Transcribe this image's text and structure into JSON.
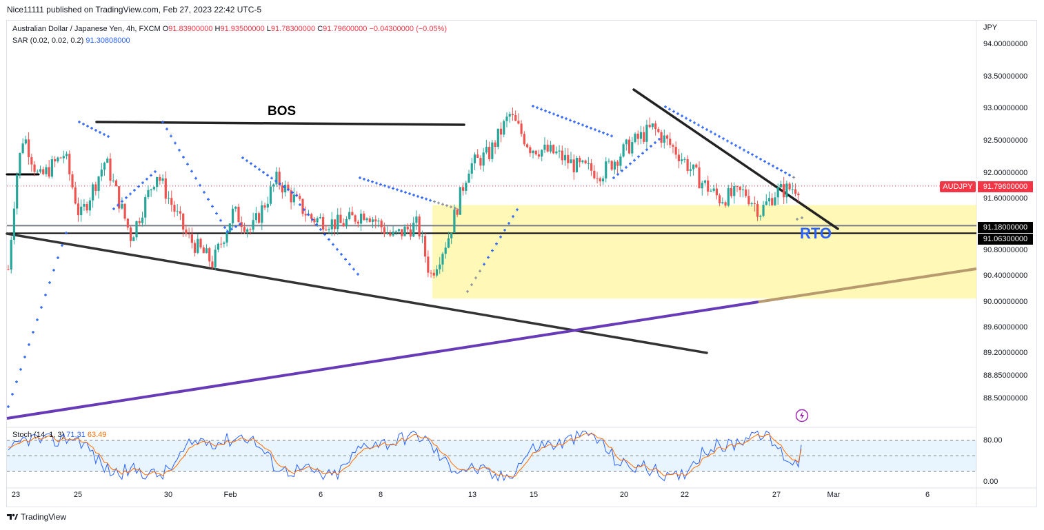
{
  "header": {
    "published": "Nice11111 published on TradingView.com, Feb 27, 2023 22:42 UTC-5"
  },
  "legend": {
    "symbol": "Australian Dollar / Japanese Yen, 4h, FXCM",
    "open_label": "O",
    "open": "91.83900000",
    "high_label": "H",
    "high": "91.93500000",
    "low_label": "L",
    "low": "91.78300000",
    "close_label": "C",
    "close": "91.79600000",
    "change": "−0.04300000 (−0.05%)",
    "sar_label": "SAR (0.02, 0.02, 0.2)",
    "sar_value": "91.30808000",
    "stoch_label": "Stoch (14, 1, 3)",
    "stoch_k": "71.31",
    "stoch_d": "63.49"
  },
  "price_axis": {
    "currency": "JPY",
    "ticks": [
      "94.00000000",
      "93.50000000",
      "93.00000000",
      "92.50000000",
      "92.00000000",
      "91.60000000",
      "90.80000000",
      "90.40000000",
      "90.00000000",
      "89.60000000",
      "89.20000000",
      "88.85000000",
      "88.50000000"
    ],
    "highlight_labels": [
      {
        "text": "91.79600000",
        "color": "#f23645"
      },
      {
        "text": "91.18000000",
        "color": "#000000"
      },
      {
        "text": "91.06300000",
        "color": "#000000"
      }
    ],
    "symbol_tag": "AUDJPY"
  },
  "stoch_axis": {
    "ticks": [
      "80.00",
      "0.00"
    ]
  },
  "time_axis": {
    "ticks": [
      "23",
      "25",
      "30",
      "Feb",
      "6",
      "8",
      "13",
      "15",
      "20",
      "22",
      "27",
      "Mar",
      "6"
    ]
  },
  "annotations": {
    "bos": "BOS",
    "rto": "RTO"
  },
  "footer": {
    "brand": "TradingView"
  },
  "colors": {
    "up": "#26a69a",
    "down": "#ef5350",
    "sar": "#2962ff",
    "zone": "#fff59d",
    "trend": "#673ab7"
  },
  "chart_data": {
    "type": "candlestick",
    "symbol": "AUDJPY",
    "interval": "4h",
    "ylim": [
      88.35,
      94.2
    ],
    "x_range": [
      "Jan 23",
      "Mar 7"
    ],
    "trend_lines": [
      {
        "from": [
          "Jan 23",
          91.95
        ],
        "to": [
          "Jan 24",
          91.95
        ]
      },
      {
        "from": [
          "Jan 26",
          92.8
        ],
        "to": [
          "Feb 10",
          92.75
        ],
        "label": "BOS"
      },
      {
        "from": [
          "Jan 23",
          91.12
        ],
        "to": [
          "Feb 18",
          89.35
        ]
      },
      {
        "from": [
          "Feb 20",
          93.3
        ],
        "to": [
          "Feb 28",
          91.15
        ]
      },
      {
        "from": [
          "Jan 23",
          88.35
        ],
        "to": [
          "Mar 7",
          90.55
        ]
      }
    ],
    "levels": [
      91.18,
      91.063,
      91.796
    ],
    "zone": {
      "from": "Feb 10",
      "to": "Mar 7",
      "top": 91.5,
      "bottom": 90.05,
      "label": "RTO"
    },
    "stochastic": {
      "k_last": 71.31,
      "d_last": 63.49,
      "upper": 80,
      "lower": 20
    }
  }
}
